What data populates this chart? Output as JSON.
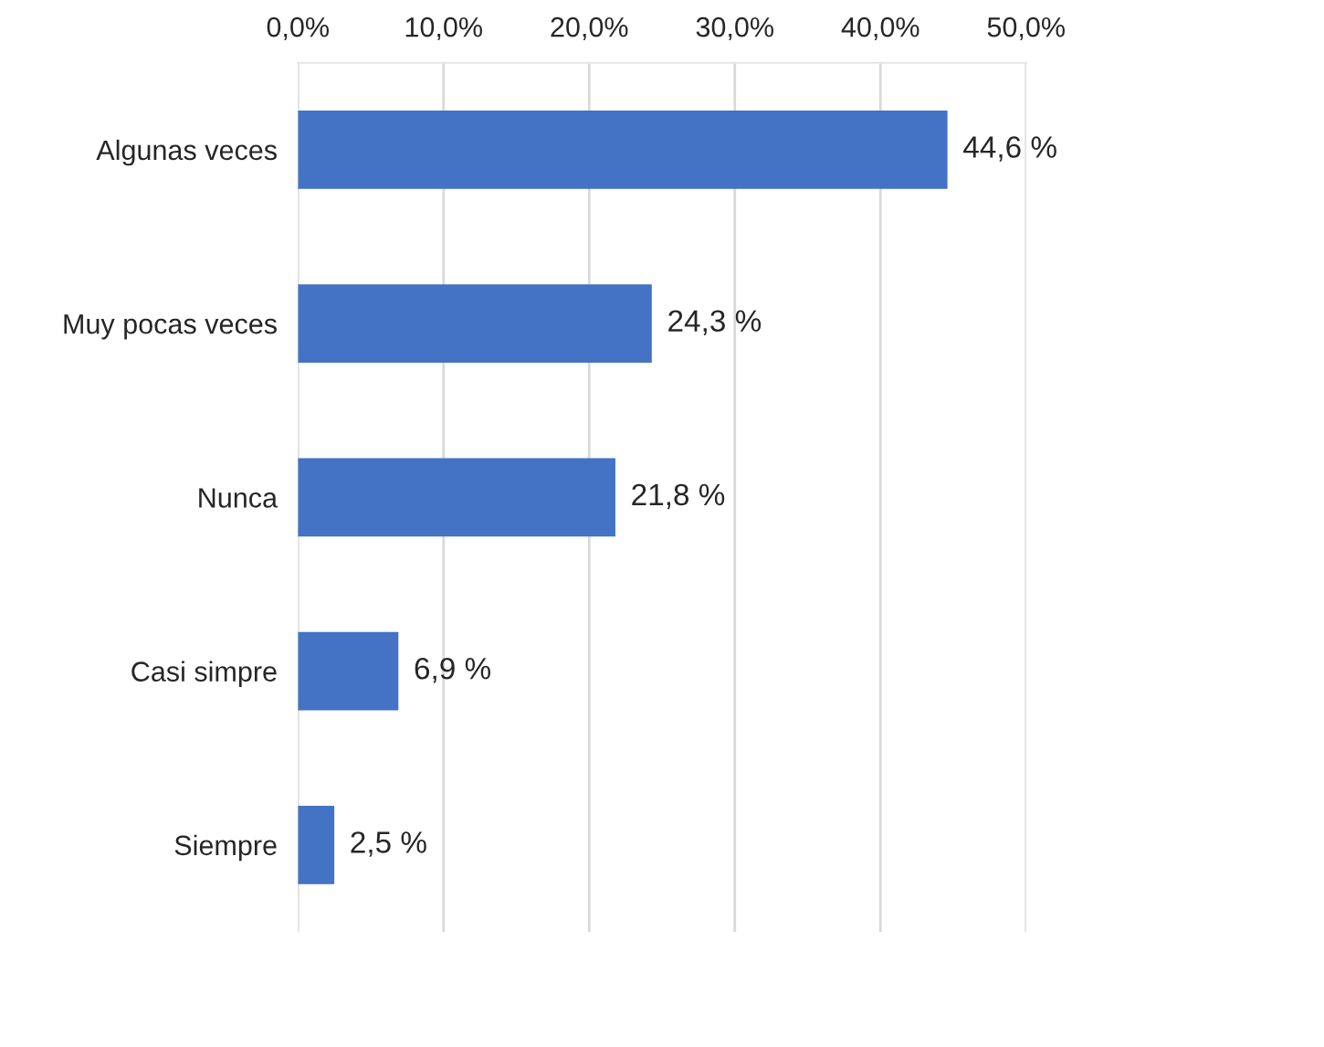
{
  "chart_data": {
    "type": "bar",
    "orientation": "horizontal",
    "categories": [
      "Algunas veces",
      "Muy pocas veces",
      "Nunca",
      "Casi simpre",
      "Siempre"
    ],
    "values": [
      44.6,
      24.3,
      21.8,
      6.9,
      2.5
    ],
    "color": "#4472c4",
    "value_labels": [
      "44,6 %",
      "24,3 %",
      "21,8 %",
      "6,9 %",
      "2,5 %"
    ],
    "xlim": [
      0,
      50
    ],
    "xticks": [
      {
        "value": 0,
        "label": "0,0%"
      },
      {
        "value": 10,
        "label": "10,0%"
      },
      {
        "value": 20,
        "label": "20,0%"
      },
      {
        "value": 30,
        "label": "30,0%"
      },
      {
        "value": 40,
        "label": "40,0%"
      },
      {
        "value": 50,
        "label": "50,0%"
      }
    ],
    "grid": "x"
  }
}
